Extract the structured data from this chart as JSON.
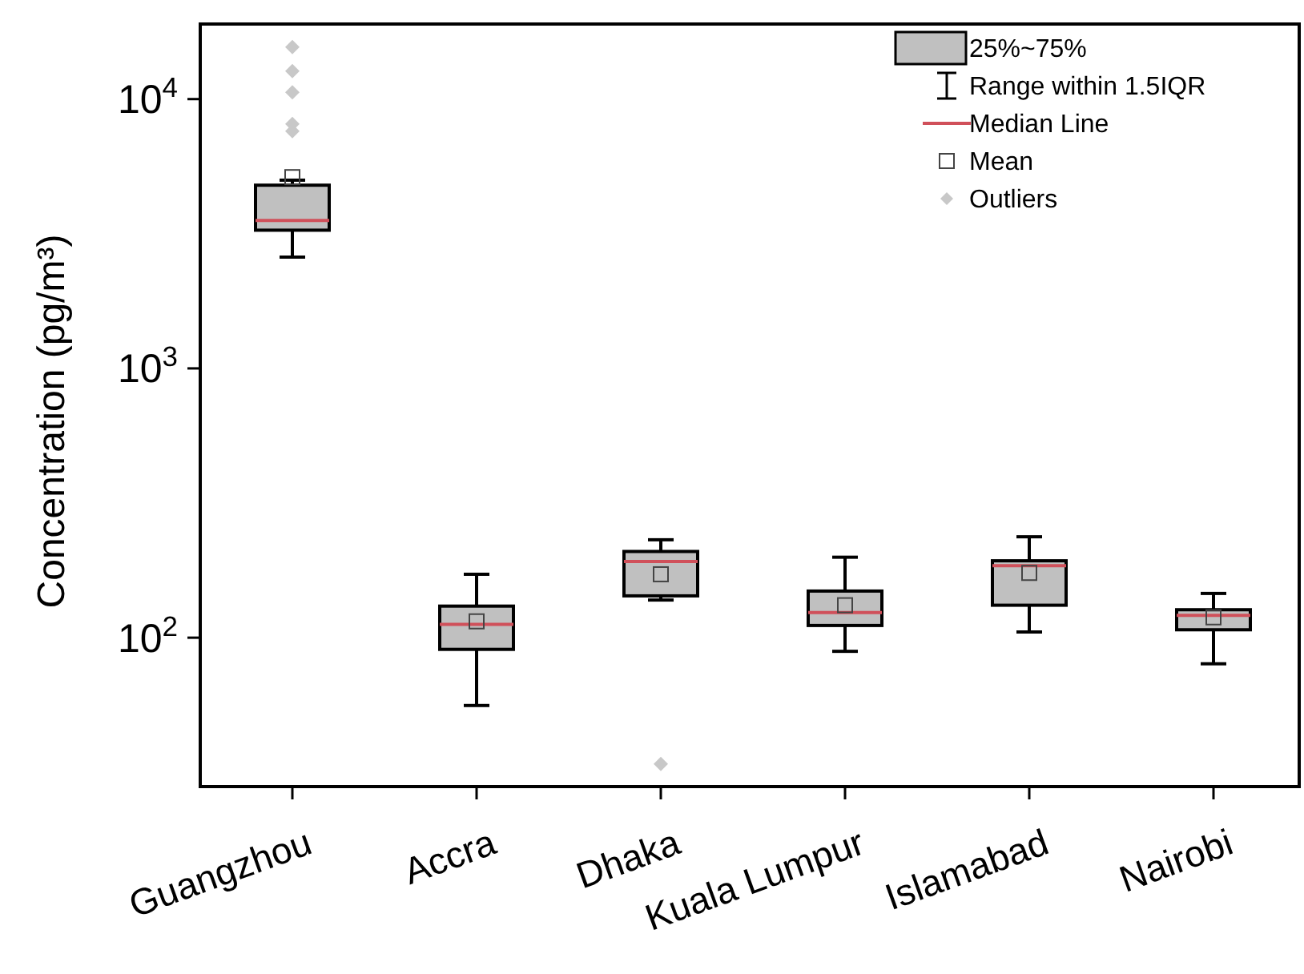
{
  "chart_data": {
    "type": "box",
    "ylabel": "Concentration (pg/m³)",
    "log": true,
    "categories": [
      "Guangzhou",
      "Accra",
      "Dhaka",
      "Kuala Lumpur",
      "Islamabad",
      "Nairobi"
    ],
    "series": [
      {
        "color": "#c0c0c0",
        "boxes": [
          {
            "low": 2590,
            "q1": 3260,
            "median": 3540,
            "q3": 4790,
            "high": 5000,
            "mean": 5130,
            "outliers": [
              7600,
              8090,
              10600,
              12700,
              15600
            ]
          },
          {
            "low": 56,
            "q1": 90.5,
            "median": 112,
            "q3": 131,
            "high": 172,
            "mean": 115
          },
          {
            "low": 138,
            "q1": 143,
            "median": 192,
            "q3": 209,
            "high": 231,
            "mean": 172,
            "outliers": [
              34
            ]
          },
          {
            "low": 89,
            "q1": 111,
            "median": 124,
            "q3": 149,
            "high": 199,
            "mean": 132
          },
          {
            "low": 105,
            "q1": 132,
            "median": 185,
            "q3": 193,
            "high": 237,
            "mean": 174
          },
          {
            "low": 80,
            "q1": 107,
            "median": 121,
            "q3": 127,
            "high": 146,
            "mean": 119
          }
        ]
      }
    ],
    "ylim": [
      28,
      19000
    ],
    "yticks": [
      {
        "value": 100,
        "label": "10$^{2}$"
      },
      {
        "value": 1000,
        "label": "10$^{3}$"
      },
      {
        "value": 10000,
        "label": "10$^{4}$"
      }
    ],
    "annotations": [
      "25%~75%",
      "Range within 1.5IQR",
      "Median Line",
      "Mean",
      "Outliers"
    ],
    "grid": false
  }
}
